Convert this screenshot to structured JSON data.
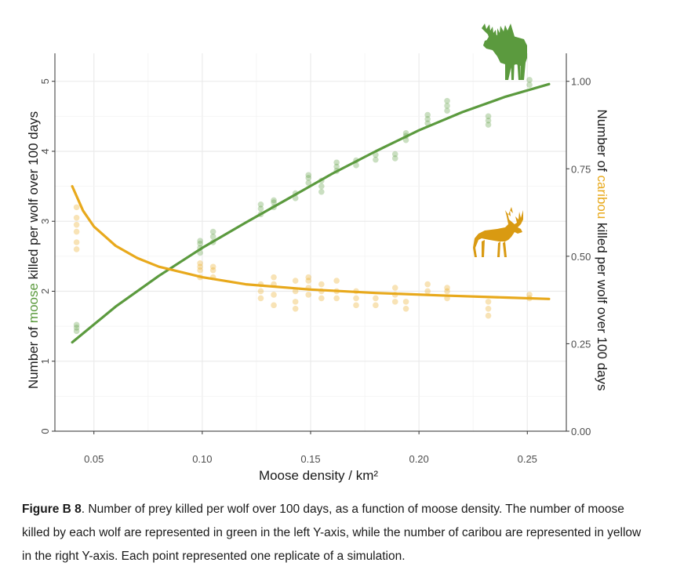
{
  "chart_data": {
    "type": "scatter",
    "x_label": "Moose density / km²",
    "y_left_label_parts": [
      "Number of ",
      "moose",
      " killed per wolf over 100 days"
    ],
    "y_right_label_parts": [
      "Number of ",
      "caribou",
      " killed per wolf over 100 days"
    ],
    "x_ticks": [
      "0.05",
      "0.10",
      "0.15",
      "0.20",
      "0.25"
    ],
    "x_tick_values": [
      0.05,
      0.1,
      0.15,
      0.2,
      0.25
    ],
    "y_left_ticks": [
      "0",
      "1",
      "2",
      "3",
      "4",
      "5"
    ],
    "y_left_tick_values": [
      0,
      1,
      2,
      3,
      4,
      5
    ],
    "y_right_ticks": [
      "0.00",
      "0.25",
      "0.50",
      "0.75",
      "1.00"
    ],
    "y_right_tick_values": [
      0,
      0.25,
      0.5,
      0.75,
      1.0
    ],
    "xlim": [
      0.032,
      0.268
    ],
    "y_left_lim": [
      0,
      5.4
    ],
    "y_right_lim": [
      0,
      1.08
    ],
    "grid": true,
    "colors": {
      "moose": "#5b9a3e",
      "caribou": "#e8a91c",
      "grid": "#ebebeb",
      "axis": "#333333"
    },
    "series": [
      {
        "name": "moose",
        "axis": "left",
        "points": [
          [
            0.042,
            1.43
          ],
          [
            0.042,
            1.48
          ],
          [
            0.042,
            1.52
          ],
          [
            0.099,
            2.55
          ],
          [
            0.099,
            2.62
          ],
          [
            0.099,
            2.68
          ],
          [
            0.099,
            2.72
          ],
          [
            0.105,
            2.7
          ],
          [
            0.105,
            2.78
          ],
          [
            0.105,
            2.85
          ],
          [
            0.127,
            3.1
          ],
          [
            0.127,
            3.18
          ],
          [
            0.127,
            3.24
          ],
          [
            0.133,
            3.2
          ],
          [
            0.133,
            3.27
          ],
          [
            0.133,
            3.3
          ],
          [
            0.143,
            3.33
          ],
          [
            0.143,
            3.4
          ],
          [
            0.149,
            3.55
          ],
          [
            0.149,
            3.62
          ],
          [
            0.149,
            3.66
          ],
          [
            0.155,
            3.42
          ],
          [
            0.155,
            3.5
          ],
          [
            0.155,
            3.58
          ],
          [
            0.162,
            3.72
          ],
          [
            0.162,
            3.78
          ],
          [
            0.162,
            3.84
          ],
          [
            0.171,
            3.8
          ],
          [
            0.171,
            3.87
          ],
          [
            0.18,
            3.88
          ],
          [
            0.18,
            3.95
          ],
          [
            0.189,
            3.9
          ],
          [
            0.189,
            3.96
          ],
          [
            0.194,
            4.16
          ],
          [
            0.194,
            4.22
          ],
          [
            0.194,
            4.26
          ],
          [
            0.204,
            4.4
          ],
          [
            0.204,
            4.46
          ],
          [
            0.204,
            4.52
          ],
          [
            0.213,
            4.58
          ],
          [
            0.213,
            4.65
          ],
          [
            0.213,
            4.72
          ],
          [
            0.232,
            4.38
          ],
          [
            0.232,
            4.44
          ],
          [
            0.232,
            4.5
          ],
          [
            0.251,
            4.95
          ],
          [
            0.251,
            5.02
          ]
        ],
        "fit": [
          [
            0.04,
            1.27
          ],
          [
            0.06,
            1.78
          ],
          [
            0.08,
            2.22
          ],
          [
            0.1,
            2.62
          ],
          [
            0.12,
            2.98
          ],
          [
            0.14,
            3.33
          ],
          [
            0.16,
            3.68
          ],
          [
            0.18,
            4.0
          ],
          [
            0.2,
            4.3
          ],
          [
            0.22,
            4.56
          ],
          [
            0.24,
            4.78
          ],
          [
            0.26,
            4.96
          ]
        ]
      },
      {
        "name": "caribou",
        "axis": "right",
        "points": [
          [
            0.042,
            0.52
          ],
          [
            0.042,
            0.54
          ],
          [
            0.042,
            0.57
          ],
          [
            0.042,
            0.59
          ],
          [
            0.042,
            0.61
          ],
          [
            0.042,
            0.64
          ],
          [
            0.099,
            0.44
          ],
          [
            0.099,
            0.46
          ],
          [
            0.099,
            0.47
          ],
          [
            0.099,
            0.48
          ],
          [
            0.105,
            0.44
          ],
          [
            0.105,
            0.46
          ],
          [
            0.105,
            0.47
          ],
          [
            0.127,
            0.38
          ],
          [
            0.127,
            0.4
          ],
          [
            0.127,
            0.42
          ],
          [
            0.133,
            0.36
          ],
          [
            0.133,
            0.39
          ],
          [
            0.133,
            0.42
          ],
          [
            0.133,
            0.44
          ],
          [
            0.143,
            0.35
          ],
          [
            0.143,
            0.37
          ],
          [
            0.143,
            0.4
          ],
          [
            0.143,
            0.43
          ],
          [
            0.149,
            0.39
          ],
          [
            0.149,
            0.41
          ],
          [
            0.149,
            0.43
          ],
          [
            0.149,
            0.44
          ],
          [
            0.155,
            0.38
          ],
          [
            0.155,
            0.4
          ],
          [
            0.155,
            0.42
          ],
          [
            0.162,
            0.38
          ],
          [
            0.162,
            0.4
          ],
          [
            0.162,
            0.43
          ],
          [
            0.171,
            0.36
          ],
          [
            0.171,
            0.38
          ],
          [
            0.171,
            0.4
          ],
          [
            0.18,
            0.36
          ],
          [
            0.18,
            0.38
          ],
          [
            0.189,
            0.37
          ],
          [
            0.189,
            0.39
          ],
          [
            0.189,
            0.41
          ],
          [
            0.194,
            0.35
          ],
          [
            0.194,
            0.37
          ],
          [
            0.204,
            0.4
          ],
          [
            0.204,
            0.42
          ],
          [
            0.213,
            0.38
          ],
          [
            0.213,
            0.4
          ],
          [
            0.213,
            0.41
          ],
          [
            0.232,
            0.33
          ],
          [
            0.232,
            0.35
          ],
          [
            0.232,
            0.37
          ],
          [
            0.251,
            0.38
          ],
          [
            0.251,
            0.39
          ]
        ],
        "fit": [
          [
            0.04,
            0.7
          ],
          [
            0.045,
            0.63
          ],
          [
            0.05,
            0.585
          ],
          [
            0.06,
            0.53
          ],
          [
            0.07,
            0.495
          ],
          [
            0.08,
            0.47
          ],
          [
            0.1,
            0.44
          ],
          [
            0.12,
            0.42
          ],
          [
            0.15,
            0.405
          ],
          [
            0.18,
            0.395
          ],
          [
            0.21,
            0.388
          ],
          [
            0.24,
            0.382
          ],
          [
            0.26,
            0.378
          ]
        ]
      }
    ]
  },
  "icons": {
    "moose": "moose-silhouette-icon",
    "caribou": "caribou-silhouette-icon"
  },
  "caption": {
    "label": "Figure B 8",
    "text": ". Number of prey killed per wolf over 100 days, as a function of moose density. The number of moose killed by each wolf are represented in green in the left Y-axis, while the number of caribou are represented in yellow in the right Y-axis. Each point represented one replicate of a simulation."
  }
}
